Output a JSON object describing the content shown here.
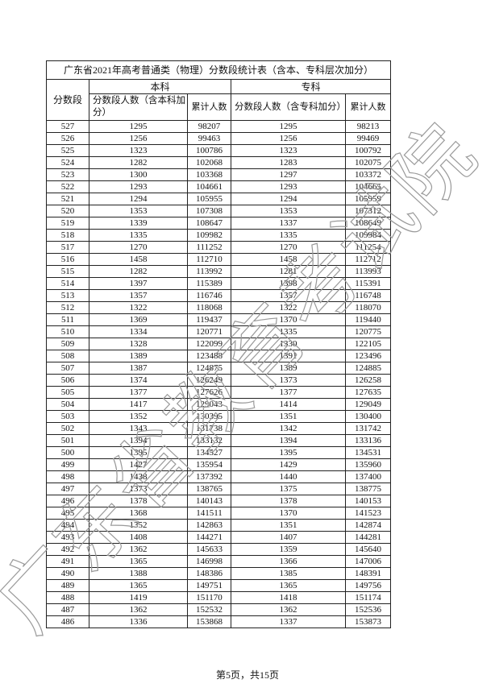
{
  "title": "广东省2021年高考普通类（物理）分数段统计表（含本、专科层次加分）",
  "table": {
    "header": {
      "score": "分数段",
      "benke": "本科",
      "zhuanke": "专科",
      "benke_count": "分数段人数（含本科加分）",
      "benke_cum": "累计人数",
      "zhuanke_count": "分数段人数（含专科加分）",
      "zhuanke_cum": "累计人数"
    },
    "rows": [
      [
        527,
        1295,
        98207,
        1295,
        98213
      ],
      [
        526,
        1256,
        99463,
        1256,
        99469
      ],
      [
        525,
        1323,
        100786,
        1323,
        100792
      ],
      [
        524,
        1282,
        102068,
        1283,
        102075
      ],
      [
        523,
        1300,
        103368,
        1297,
        103372
      ],
      [
        522,
        1293,
        104661,
        1293,
        104665
      ],
      [
        521,
        1294,
        105955,
        1294,
        105959
      ],
      [
        520,
        1353,
        107308,
        1353,
        107312
      ],
      [
        519,
        1339,
        108647,
        1337,
        108649
      ],
      [
        518,
        1335,
        109982,
        1335,
        109984
      ],
      [
        517,
        1270,
        111252,
        1270,
        111254
      ],
      [
        516,
        1458,
        112710,
        1458,
        112712
      ],
      [
        515,
        1282,
        113992,
        1281,
        113993
      ],
      [
        514,
        1397,
        115389,
        1398,
        115391
      ],
      [
        513,
        1357,
        116746,
        1357,
        116748
      ],
      [
        512,
        1322,
        118068,
        1322,
        118070
      ],
      [
        511,
        1369,
        119437,
        1370,
        119440
      ],
      [
        510,
        1334,
        120771,
        1335,
        120775
      ],
      [
        509,
        1328,
        122099,
        1330,
        122105
      ],
      [
        508,
        1389,
        123488,
        1391,
        123496
      ],
      [
        507,
        1387,
        124875,
        1389,
        124885
      ],
      [
        506,
        1374,
        126249,
        1373,
        126258
      ],
      [
        505,
        1377,
        127626,
        1377,
        127635
      ],
      [
        504,
        1417,
        129043,
        1414,
        129049
      ],
      [
        503,
        1352,
        130395,
        1351,
        130400
      ],
      [
        502,
        1343,
        131738,
        1342,
        131742
      ],
      [
        501,
        1394,
        133132,
        1394,
        133136
      ],
      [
        500,
        1395,
        134527,
        1395,
        134531
      ],
      [
        499,
        1427,
        135954,
        1429,
        135960
      ],
      [
        498,
        1438,
        137392,
        1440,
        137400
      ],
      [
        497,
        1373,
        138765,
        1375,
        138775
      ],
      [
        496,
        1378,
        140143,
        1378,
        140153
      ],
      [
        495,
        1368,
        141511,
        1370,
        141523
      ],
      [
        494,
        1352,
        142863,
        1351,
        142874
      ],
      [
        493,
        1408,
        144271,
        1407,
        144281
      ],
      [
        492,
        1362,
        145633,
        1359,
        145640
      ],
      [
        491,
        1365,
        146998,
        1366,
        147006
      ],
      [
        490,
        1388,
        148386,
        1385,
        148391
      ],
      [
        489,
        1365,
        149751,
        1365,
        149756
      ],
      [
        488,
        1419,
        151170,
        1418,
        151174
      ],
      [
        487,
        1362,
        152532,
        1362,
        152536
      ],
      [
        486,
        1336,
        153868,
        1337,
        153873
      ]
    ]
  },
  "footer": "第5页，共15页",
  "watermark": "广东省教育考试院"
}
